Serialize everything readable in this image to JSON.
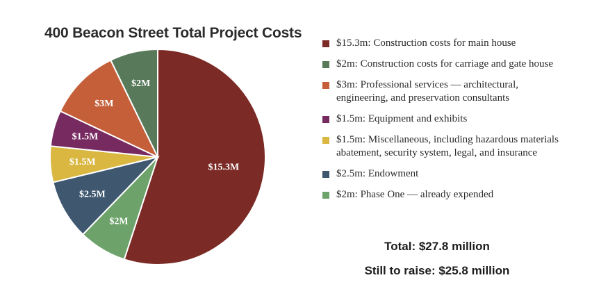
{
  "chart_data": {
    "type": "pie",
    "title": "400 Beacon Street Total Project Costs",
    "slices": [
      {
        "label": "$15.3M",
        "value": 15.3,
        "color": "#7b2a25"
      },
      {
        "label": "$2M",
        "value": 2,
        "color": "#6da26a"
      },
      {
        "label": "$2.5M",
        "value": 2.5,
        "color": "#3f5870"
      },
      {
        "label": "$1.5M",
        "value": 1.5,
        "color": "#d9b740"
      },
      {
        "label": "$1.5M",
        "value": 1.5,
        "color": "#772a60"
      },
      {
        "label": "$3M",
        "value": 3,
        "color": "#c45f3a"
      },
      {
        "label": "$2M",
        "value": 2,
        "color": "#58795a"
      }
    ],
    "legend": [
      {
        "text": "$15.3m:  Construction costs for main house",
        "color": "#7b2a25"
      },
      {
        "text": "$2m:  Construction costs for carriage and gate house",
        "color": "#58795a"
      },
      {
        "text": "$3m:  Professional services — architectural, engineering, and preservation consultants",
        "color": "#c45f3a"
      },
      {
        "text": "$1.5m:  Equipment and exhibits",
        "color": "#772a60"
      },
      {
        "text": "$1.5m:  Miscellaneous, including hazardous materials abatement, security system, legal, and insurance",
        "color": "#d9b740"
      },
      {
        "text": "$2.5m:  Endowment",
        "color": "#3f5870"
      },
      {
        "text": "$2m:  Phase One — already expended",
        "color": "#6da26a"
      }
    ],
    "total": "Total: $27.8 million",
    "still_to_raise": "Still to raise: $25.8 million"
  }
}
